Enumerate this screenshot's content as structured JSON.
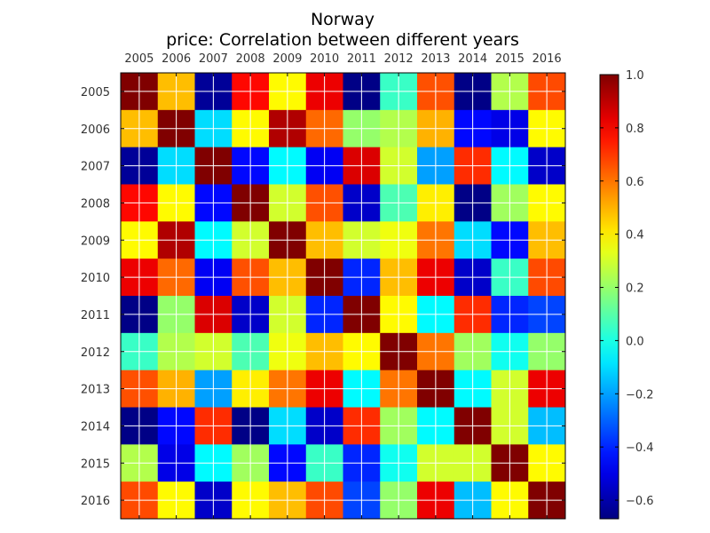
{
  "chart_data": {
    "type": "heatmap",
    "title": "Norway",
    "subtitle": "price: Correlation between different years",
    "xlabel": "",
    "ylabel": "",
    "x_tick_labels": [
      "2005",
      "2006",
      "2007",
      "2008",
      "2009",
      "2010",
      "2011",
      "2012",
      "2013",
      "2014",
      "2015",
      "2016"
    ],
    "y_tick_labels": [
      "2005",
      "2006",
      "2007",
      "2008",
      "2009",
      "2010",
      "2011",
      "2012",
      "2013",
      "2014",
      "2015",
      "2016"
    ],
    "x_axis_position": "top",
    "colormap": "jet",
    "colorbar": {
      "min": -0.67,
      "max": 1.0,
      "ticks": [
        1.0,
        0.8,
        0.6,
        0.4,
        0.2,
        0.0,
        -0.2,
        -0.4,
        -0.6
      ],
      "tick_labels": [
        "1.0",
        "0.8",
        "0.6",
        "0.4",
        "0.2",
        "0.0",
        "−0.2",
        "−0.4",
        "−0.6"
      ],
      "placement": "right"
    },
    "grid": true,
    "values": [
      [
        1.0,
        0.48,
        -0.63,
        0.78,
        0.38,
        0.82,
        -0.66,
        0.05,
        0.66,
        -0.66,
        0.25,
        0.67
      ],
      [
        0.48,
        1.0,
        -0.1,
        0.38,
        0.92,
        0.62,
        0.2,
        0.25,
        0.5,
        -0.45,
        -0.5,
        0.38
      ],
      [
        -0.63,
        -0.1,
        1.0,
        -0.45,
        -0.05,
        -0.48,
        0.85,
        0.3,
        -0.2,
        0.72,
        -0.05,
        -0.55
      ],
      [
        0.78,
        0.38,
        -0.45,
        1.0,
        0.3,
        0.66,
        -0.55,
        0.08,
        0.4,
        -0.66,
        0.22,
        0.38
      ],
      [
        0.38,
        0.92,
        -0.05,
        0.3,
        1.0,
        0.48,
        0.3,
        0.35,
        0.6,
        -0.1,
        -0.45,
        0.48
      ],
      [
        0.82,
        0.62,
        -0.48,
        0.66,
        0.48,
        1.0,
        -0.4,
        0.48,
        0.82,
        -0.55,
        0.05,
        0.67
      ],
      [
        -0.66,
        0.2,
        0.85,
        -0.55,
        0.3,
        -0.4,
        1.0,
        0.38,
        -0.05,
        0.72,
        -0.4,
        -0.35
      ],
      [
        0.05,
        0.25,
        0.3,
        0.08,
        0.35,
        0.48,
        0.38,
        1.0,
        0.6,
        0.22,
        -0.02,
        0.2
      ],
      [
        0.66,
        0.5,
        -0.2,
        0.4,
        0.6,
        0.82,
        -0.05,
        0.6,
        1.0,
        -0.05,
        0.3,
        0.82
      ],
      [
        -0.66,
        -0.45,
        0.72,
        -0.66,
        -0.1,
        -0.55,
        0.72,
        0.22,
        -0.05,
        1.0,
        0.3,
        -0.15
      ],
      [
        0.25,
        -0.5,
        -0.05,
        0.22,
        -0.45,
        0.05,
        -0.4,
        -0.02,
        0.3,
        0.3,
        1.0,
        0.38
      ],
      [
        0.67,
        0.38,
        -0.55,
        0.38,
        0.48,
        0.67,
        -0.35,
        0.2,
        0.82,
        -0.15,
        0.38,
        1.0
      ]
    ]
  }
}
